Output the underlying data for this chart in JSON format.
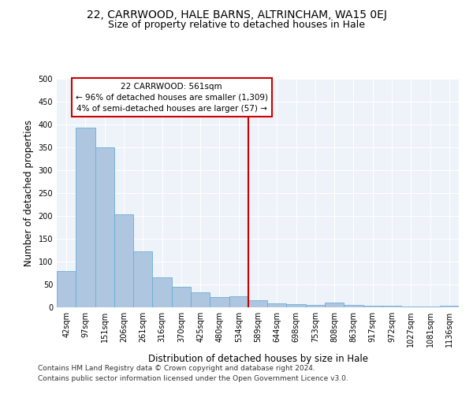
{
  "title": "22, CARRWOOD, HALE BARNS, ALTRINCHAM, WA15 0EJ",
  "subtitle": "Size of property relative to detached houses in Hale",
  "xlabel": "Distribution of detached houses by size in Hale",
  "ylabel": "Number of detached properties",
  "footnote1": "Contains HM Land Registry data © Crown copyright and database right 2024.",
  "footnote2": "Contains public sector information licensed under the Open Government Licence v3.0.",
  "bar_labels": [
    "42sqm",
    "97sqm",
    "151sqm",
    "206sqm",
    "261sqm",
    "316sqm",
    "370sqm",
    "425sqm",
    "480sqm",
    "534sqm",
    "589sqm",
    "644sqm",
    "698sqm",
    "753sqm",
    "808sqm",
    "863sqm",
    "917sqm",
    "972sqm",
    "1027sqm",
    "1081sqm",
    "1136sqm"
  ],
  "bar_values": [
    80,
    393,
    350,
    203,
    123,
    65,
    45,
    32,
    22,
    25,
    15,
    8,
    7,
    5,
    10,
    6,
    3,
    3,
    2,
    1,
    3
  ],
  "bar_color": "#aec6df",
  "bar_edge_color": "#6baed6",
  "vline_color": "#cc0000",
  "annotation_box_color": "#cc0000",
  "ylim": [
    0,
    500
  ],
  "yticks": [
    0,
    50,
    100,
    150,
    200,
    250,
    300,
    350,
    400,
    450,
    500
  ],
  "background_color": "#eef2f9",
  "title_fontsize": 10,
  "subtitle_fontsize": 9,
  "axis_label_fontsize": 8.5,
  "tick_fontsize": 7,
  "annotation_fontsize": 7.5,
  "footnote_fontsize": 6.5
}
